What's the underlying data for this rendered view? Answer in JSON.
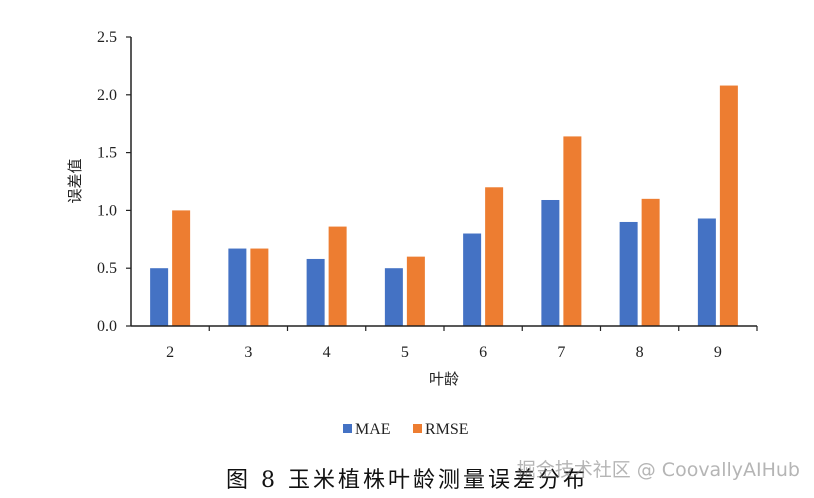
{
  "chart_data": {
    "type": "bar",
    "categories": [
      "2",
      "3",
      "4",
      "5",
      "6",
      "7",
      "8",
      "9"
    ],
    "series": [
      {
        "name": "MAE",
        "color": "#4472C4",
        "values": [
          0.5,
          0.67,
          0.58,
          0.5,
          0.8,
          1.09,
          0.9,
          0.93
        ]
      },
      {
        "name": "RMSE",
        "color": "#ED7D31",
        "values": [
          1.0,
          0.67,
          0.86,
          0.6,
          1.2,
          1.64,
          1.1,
          2.08
        ]
      }
    ],
    "ylim": [
      0,
      2.5
    ],
    "yticks": [
      "0.0",
      "0.5",
      "1.0",
      "1.5",
      "2.0",
      "2.5"
    ],
    "xlabel": "叶龄",
    "ylabel": "误差值",
    "grid": false,
    "legend_position": "bottom"
  },
  "caption": "图 8   玉米植株叶龄测量误差分布",
  "watermark": "掘金技术社区 @ CoovallyAIHub"
}
